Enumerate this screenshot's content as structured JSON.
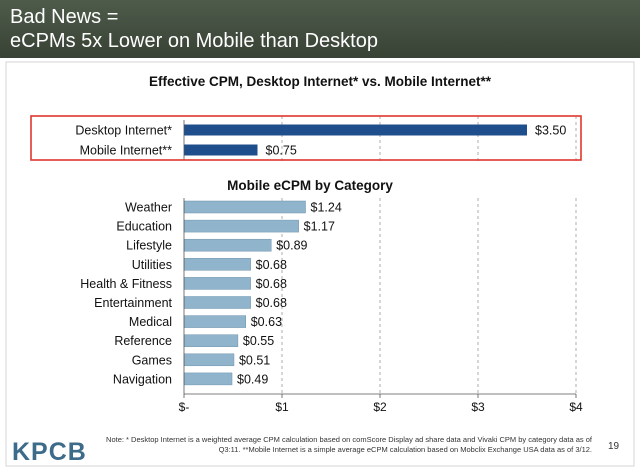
{
  "slide": {
    "title_line1": "Bad News =",
    "title_line2": "eCPMs 5x Lower on Mobile than Desktop",
    "logo": "KPCB",
    "footnote": "Note: * Desktop Internet is a weighted average CPM calculation based on comScore Display ad share data and Vivaki CPM by category data as of Q3:11. **Mobile Internet is a simple average eCPM calculation based on Mobclix Exchange USA data as of 3/12.",
    "page_number": "19"
  },
  "colors": {
    "desktop_mobile_bar": "#1f4e8c",
    "category_bar": "#8fb4cc",
    "highlight_box": "#e0362c",
    "title_bg": "#444f41"
  },
  "chart_data": [
    {
      "type": "bar",
      "orientation": "horizontal",
      "title": "Effective CPM, Desktop Internet* vs. Mobile Internet**",
      "categories": [
        "Desktop Internet*",
        "Mobile Internet**"
      ],
      "values": [
        3.5,
        0.75
      ],
      "value_labels": [
        "$3.50",
        "$0.75"
      ],
      "xlim": [
        0,
        4
      ],
      "grid": true,
      "highlighted": true
    },
    {
      "type": "bar",
      "orientation": "horizontal",
      "title": "Mobile eCPM by Category",
      "categories": [
        "Weather",
        "Education",
        "Lifestyle",
        "Utilities",
        "Health & Fitness",
        "Entertainment",
        "Medical",
        "Reference",
        "Games",
        "Navigation"
      ],
      "values": [
        1.24,
        1.17,
        0.89,
        0.68,
        0.68,
        0.68,
        0.63,
        0.55,
        0.51,
        0.49
      ],
      "value_labels": [
        "$1.24",
        "$1.17",
        "$0.89",
        "$0.68",
        "$0.68",
        "$0.68",
        "$0.63",
        "$0.55",
        "$0.51",
        "$0.49"
      ],
      "xlim": [
        0,
        4
      ],
      "xticks": [
        0,
        1,
        2,
        3,
        4
      ],
      "xtick_labels": [
        "$-",
        "$1",
        "$2",
        "$3",
        "$4"
      ],
      "grid": true
    }
  ]
}
